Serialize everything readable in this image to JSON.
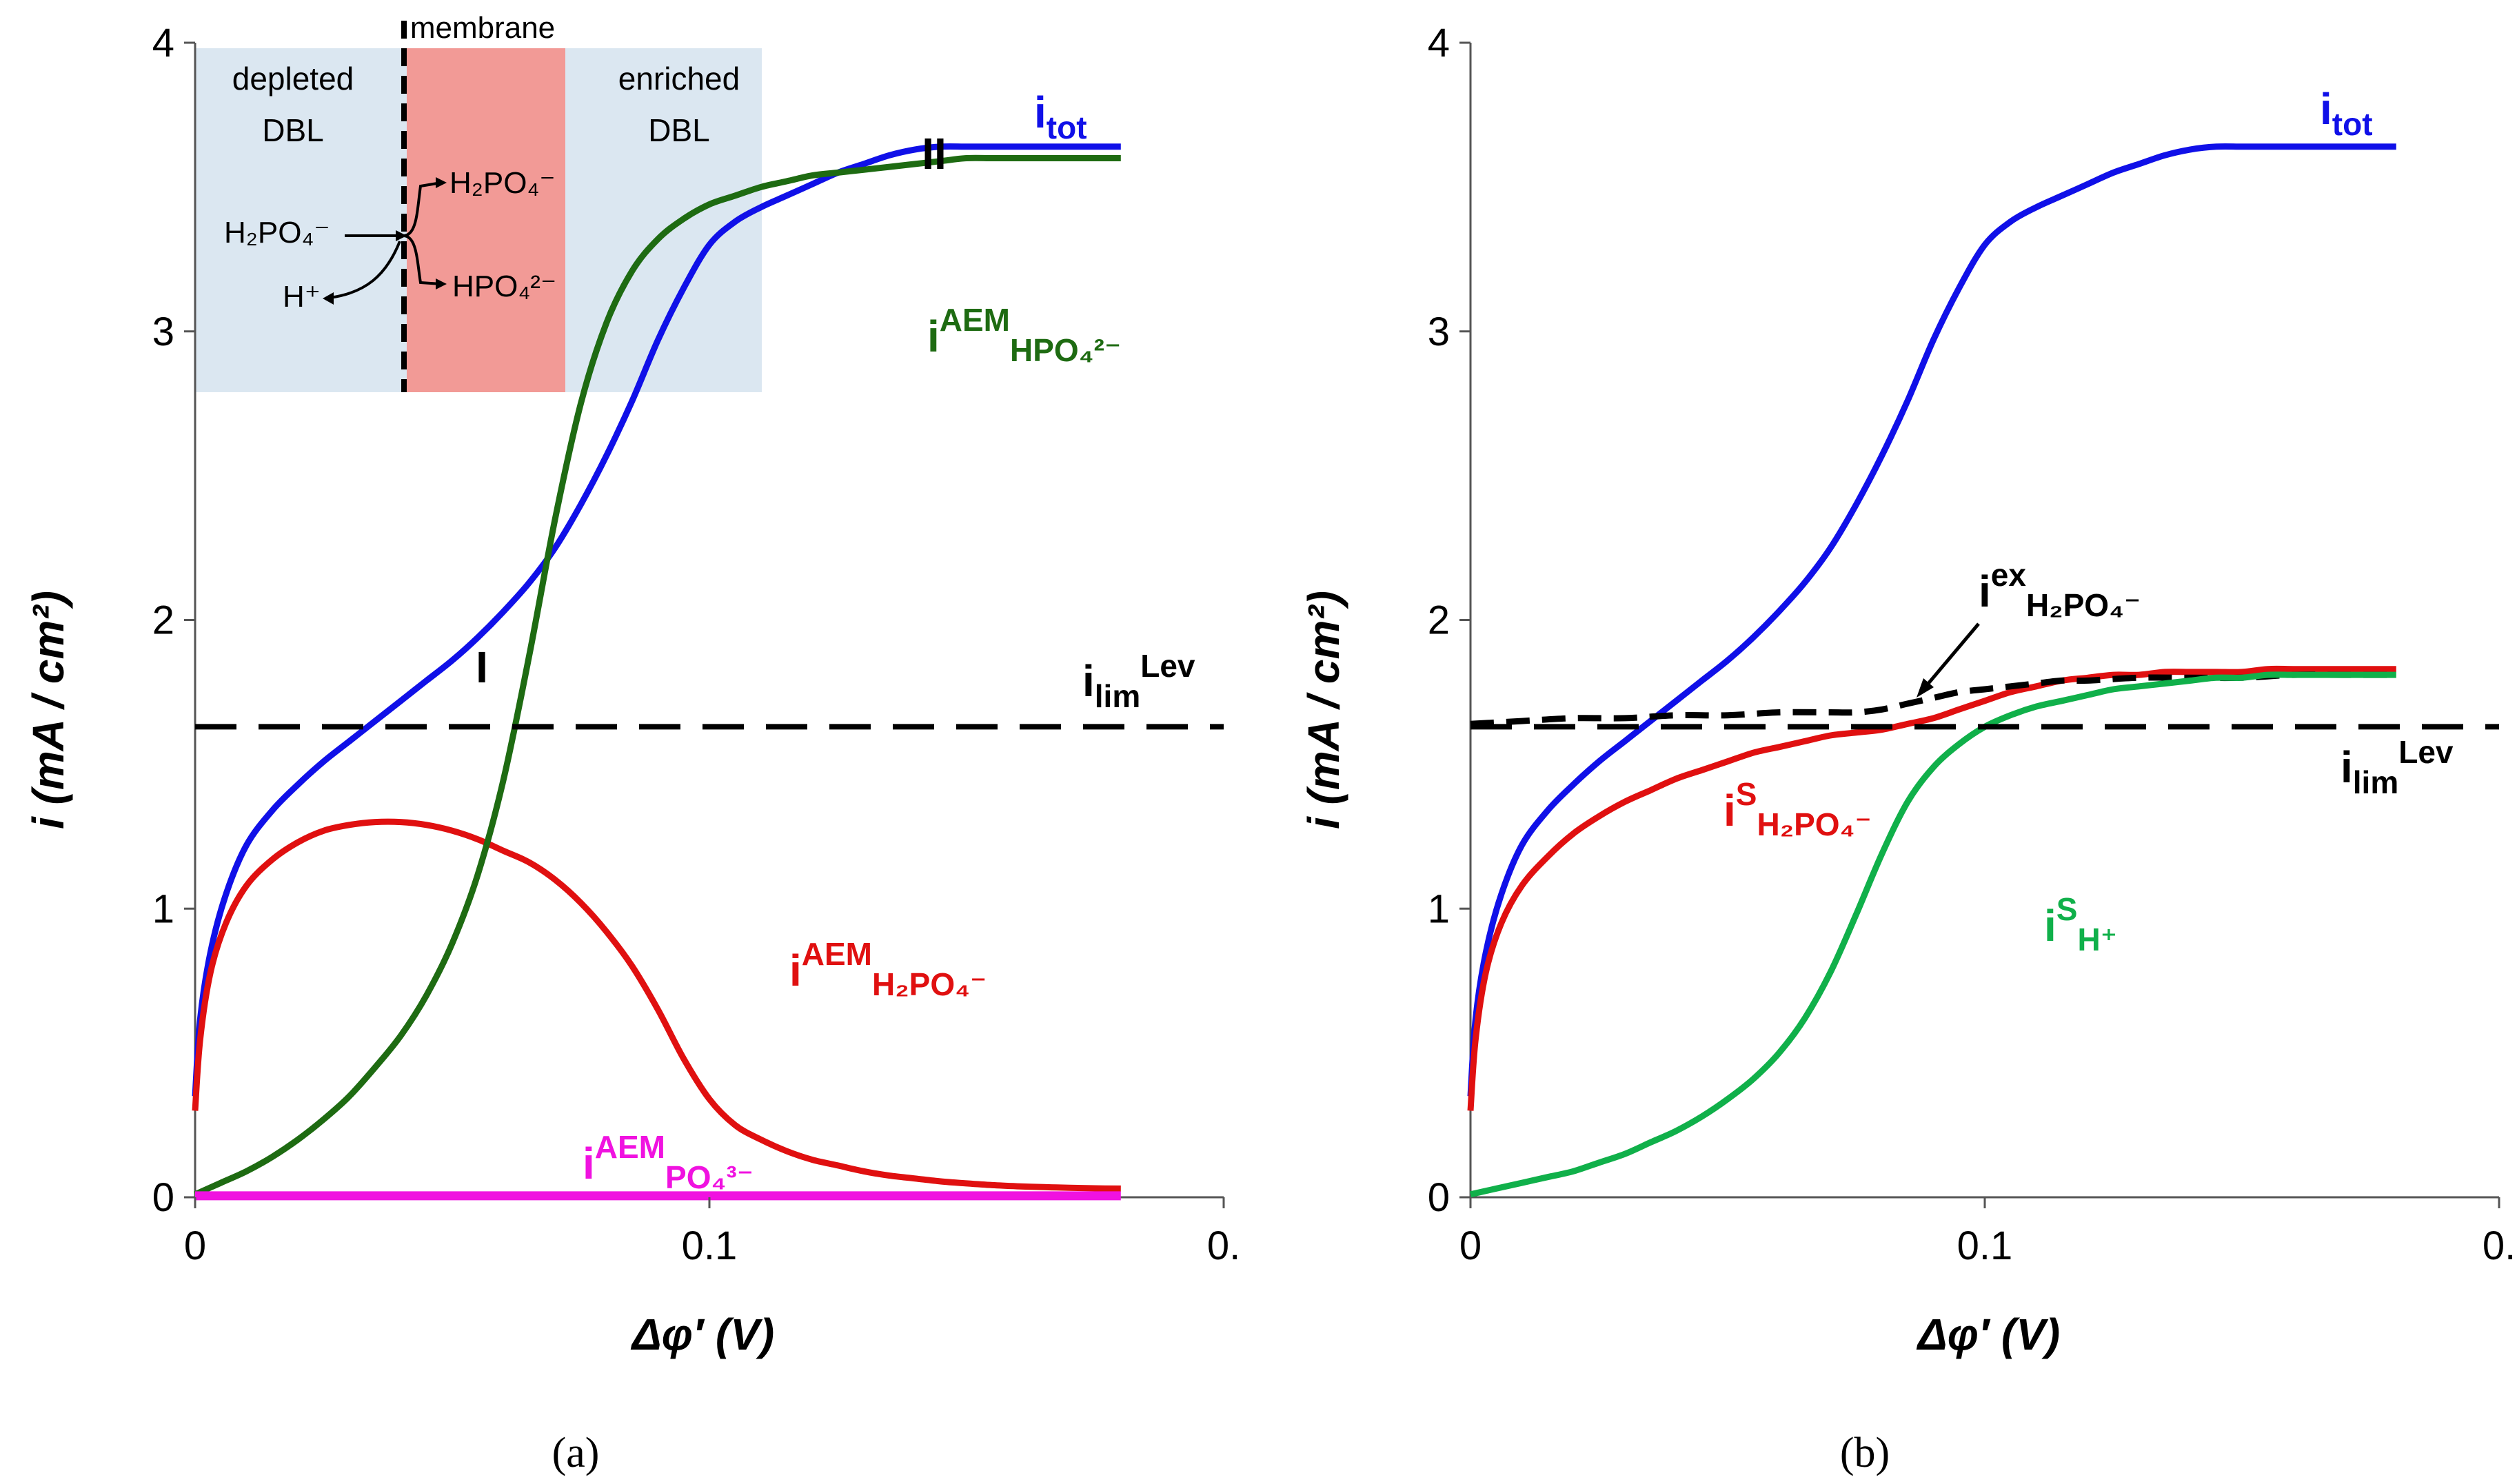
{
  "colors": {
    "blue": "#1010e8",
    "red": "#e01010",
    "darkgreen": "#1e6b12",
    "green": "#10b04a",
    "magenta": "#f012e0",
    "black": "#000000",
    "dbl": "#dbe7f1",
    "membrane": "#f29a96"
  },
  "chart_data": [
    {
      "type": "line",
      "panel_label": "(a)",
      "xlabel": "Δφ′ (V)",
      "ylabel": "i (mA / cm²)",
      "xlim": [
        0,
        0.2
      ],
      "ylim": [
        0,
        4
      ],
      "x_ticks": [
        "0",
        "0.1",
        "0."
      ],
      "y_ticks": [
        "0",
        "1",
        "2",
        "3",
        "4"
      ],
      "series": [
        {
          "name": "i_tot",
          "label": "i",
          "sub": "tot",
          "sup": "",
          "color": "#1010e8",
          "dash": false,
          "x": [
            0,
            0.001,
            0.003,
            0.006,
            0.01,
            0.015,
            0.02,
            0.025,
            0.03,
            0.035,
            0.04,
            0.045,
            0.05,
            0.055,
            0.06,
            0.065,
            0.07,
            0.075,
            0.08,
            0.085,
            0.09,
            0.095,
            0.1,
            0.105,
            0.11,
            0.115,
            0.12,
            0.125,
            0.13,
            0.135,
            0.14,
            0.145,
            0.15,
            0.155,
            0.16,
            0.165,
            0.17,
            0.175,
            0.18
          ],
          "y": [
            0.35,
            0.62,
            0.85,
            1.05,
            1.22,
            1.34,
            1.43,
            1.51,
            1.58,
            1.65,
            1.72,
            1.79,
            1.86,
            1.94,
            2.03,
            2.13,
            2.25,
            2.4,
            2.57,
            2.76,
            2.97,
            3.15,
            3.3,
            3.38,
            3.43,
            3.47,
            3.51,
            3.55,
            3.58,
            3.61,
            3.63,
            3.64,
            3.64,
            3.64,
            3.64,
            3.64,
            3.64,
            3.64,
            3.64
          ]
        },
        {
          "name": "i_AEM_H2PO4",
          "label": "i",
          "sub": "H₂PO₄⁻",
          "sup": "AEM",
          "color": "#e01010",
          "dash": false,
          "x": [
            0,
            0.001,
            0.003,
            0.006,
            0.01,
            0.015,
            0.02,
            0.025,
            0.03,
            0.035,
            0.04,
            0.045,
            0.05,
            0.055,
            0.06,
            0.065,
            0.07,
            0.075,
            0.08,
            0.085,
            0.09,
            0.095,
            0.1,
            0.105,
            0.11,
            0.115,
            0.12,
            0.125,
            0.13,
            0.135,
            0.14,
            0.145,
            0.15,
            0.155,
            0.16,
            0.165,
            0.17,
            0.175,
            0.18
          ],
          "y": [
            0.3,
            0.55,
            0.78,
            0.95,
            1.08,
            1.17,
            1.23,
            1.27,
            1.29,
            1.3,
            1.3,
            1.29,
            1.27,
            1.24,
            1.2,
            1.16,
            1.1,
            1.02,
            0.92,
            0.8,
            0.65,
            0.48,
            0.34,
            0.25,
            0.2,
            0.16,
            0.13,
            0.11,
            0.09,
            0.075,
            0.065,
            0.055,
            0.048,
            0.042,
            0.038,
            0.035,
            0.033,
            0.031,
            0.03
          ]
        },
        {
          "name": "i_AEM_HPO4",
          "label": "i",
          "sub": "HPO₄²⁻",
          "sup": "AEM",
          "color": "#1e6b12",
          "dash": false,
          "x": [
            0,
            0.005,
            0.01,
            0.015,
            0.02,
            0.025,
            0.03,
            0.035,
            0.04,
            0.045,
            0.05,
            0.055,
            0.06,
            0.065,
            0.07,
            0.075,
            0.08,
            0.085,
            0.09,
            0.095,
            0.1,
            0.105,
            0.11,
            0.115,
            0.12,
            0.125,
            0.13,
            0.135,
            0.14,
            0.145,
            0.15,
            0.155,
            0.16,
            0.165,
            0.17,
            0.175,
            0.18
          ],
          "y": [
            0.01,
            0.05,
            0.09,
            0.14,
            0.2,
            0.27,
            0.35,
            0.45,
            0.56,
            0.7,
            0.88,
            1.12,
            1.45,
            1.88,
            2.35,
            2.75,
            3.03,
            3.21,
            3.32,
            3.39,
            3.44,
            3.47,
            3.5,
            3.52,
            3.54,
            3.55,
            3.56,
            3.57,
            3.58,
            3.59,
            3.6,
            3.6,
            3.6,
            3.6,
            3.6,
            3.6,
            3.6
          ]
        },
        {
          "name": "i_AEM_PO4",
          "label": "i",
          "sub": "PO₄³⁻",
          "sup": "AEM",
          "color": "#f012e0",
          "dash": false,
          "x": [
            0,
            0.18
          ],
          "y": [
            0.005,
            0.005
          ]
        },
        {
          "name": "i_lim_Lev",
          "label": "i",
          "sub": "lim",
          "sup": "Lev",
          "color": "#000000",
          "dash": true,
          "x": [
            0,
            0.2
          ],
          "y": [
            1.63,
            1.63
          ]
        }
      ],
      "annotations": [
        "I",
        "II"
      ],
      "inset": {
        "labels": [
          "membrane",
          "depleted",
          "DBL",
          "enriched",
          "DBL",
          "H₂PO₄⁻",
          "H₂PO₄⁻",
          "HPO₄²⁻",
          "H⁺"
        ]
      }
    },
    {
      "type": "line",
      "panel_label": "(b)",
      "xlabel": "Δφ′ (V)",
      "ylabel": "i (mA / cm²)",
      "xlim": [
        0,
        0.2
      ],
      "ylim": [
        0,
        4
      ],
      "x_ticks": [
        "0",
        "0.1",
        "0."
      ],
      "y_ticks": [
        "0",
        "1",
        "2",
        "3",
        "4"
      ],
      "series": [
        {
          "name": "i_tot",
          "label": "i",
          "sub": "tot",
          "sup": "",
          "color": "#1010e8",
          "dash": false,
          "x": [
            0,
            0.001,
            0.003,
            0.006,
            0.01,
            0.015,
            0.02,
            0.025,
            0.03,
            0.035,
            0.04,
            0.045,
            0.05,
            0.055,
            0.06,
            0.065,
            0.07,
            0.075,
            0.08,
            0.085,
            0.09,
            0.095,
            0.1,
            0.105,
            0.11,
            0.115,
            0.12,
            0.125,
            0.13,
            0.135,
            0.14,
            0.145,
            0.15,
            0.155,
            0.16,
            0.165,
            0.17,
            0.175,
            0.18
          ],
          "y": [
            0.35,
            0.62,
            0.85,
            1.05,
            1.22,
            1.34,
            1.43,
            1.51,
            1.58,
            1.65,
            1.72,
            1.79,
            1.86,
            1.94,
            2.03,
            2.13,
            2.25,
            2.4,
            2.57,
            2.76,
            2.97,
            3.15,
            3.3,
            3.38,
            3.43,
            3.47,
            3.51,
            3.55,
            3.58,
            3.61,
            3.63,
            3.64,
            3.64,
            3.64,
            3.64,
            3.64,
            3.64,
            3.64,
            3.64
          ]
        },
        {
          "name": "i_S_H2PO4",
          "label": "i",
          "sub": "H₂PO₄⁻",
          "sup": "S",
          "color": "#e01010",
          "dash": false,
          "x": [
            0,
            0.001,
            0.003,
            0.006,
            0.01,
            0.015,
            0.02,
            0.025,
            0.03,
            0.035,
            0.04,
            0.045,
            0.05,
            0.055,
            0.06,
            0.065,
            0.07,
            0.075,
            0.08,
            0.085,
            0.09,
            0.095,
            0.1,
            0.105,
            0.11,
            0.115,
            0.12,
            0.125,
            0.13,
            0.135,
            0.14,
            0.145,
            0.15,
            0.155,
            0.16,
            0.165,
            0.17,
            0.175,
            0.18
          ],
          "y": [
            0.3,
            0.55,
            0.78,
            0.95,
            1.08,
            1.18,
            1.26,
            1.32,
            1.37,
            1.41,
            1.45,
            1.48,
            1.51,
            1.54,
            1.56,
            1.58,
            1.6,
            1.61,
            1.62,
            1.64,
            1.66,
            1.69,
            1.72,
            1.75,
            1.77,
            1.79,
            1.8,
            1.81,
            1.81,
            1.82,
            1.82,
            1.82,
            1.82,
            1.83,
            1.83,
            1.83,
            1.83,
            1.83,
            1.83
          ]
        },
        {
          "name": "i_ex_H2PO4",
          "label": "i",
          "sub": "H₂PO₄⁻",
          "sup": "ex",
          "color": "#000000",
          "dash": true,
          "x": [
            0,
            0.01,
            0.02,
            0.03,
            0.04,
            0.05,
            0.06,
            0.07,
            0.075,
            0.08,
            0.085,
            0.09,
            0.095,
            0.1,
            0.105,
            0.11,
            0.115,
            0.12,
            0.13,
            0.14,
            0.15,
            0.16,
            0.17,
            0.18
          ],
          "y": [
            1.64,
            1.65,
            1.66,
            1.66,
            1.67,
            1.67,
            1.68,
            1.68,
            1.68,
            1.69,
            1.71,
            1.73,
            1.75,
            1.76,
            1.77,
            1.78,
            1.79,
            1.79,
            1.8,
            1.8,
            1.8,
            1.81,
            1.81,
            1.81
          ]
        },
        {
          "name": "i_S_H",
          "label": "i",
          "sub": "H⁺",
          "sup": "S",
          "color": "#10b04a",
          "dash": false,
          "x": [
            0,
            0.005,
            0.01,
            0.015,
            0.02,
            0.025,
            0.03,
            0.035,
            0.04,
            0.045,
            0.05,
            0.055,
            0.06,
            0.065,
            0.07,
            0.075,
            0.08,
            0.085,
            0.09,
            0.095,
            0.1,
            0.105,
            0.11,
            0.115,
            0.12,
            0.125,
            0.13,
            0.135,
            0.14,
            0.145,
            0.15,
            0.155,
            0.16,
            0.165,
            0.17,
            0.175,
            0.18
          ],
          "y": [
            0.01,
            0.03,
            0.05,
            0.07,
            0.09,
            0.12,
            0.15,
            0.19,
            0.23,
            0.28,
            0.34,
            0.41,
            0.5,
            0.62,
            0.78,
            0.98,
            1.19,
            1.37,
            1.49,
            1.57,
            1.63,
            1.67,
            1.7,
            1.72,
            1.74,
            1.76,
            1.77,
            1.78,
            1.79,
            1.8,
            1.8,
            1.81,
            1.81,
            1.81,
            1.81,
            1.81,
            1.81
          ]
        },
        {
          "name": "i_lim_Lev",
          "label": "i",
          "sub": "lim",
          "sup": "Lev",
          "color": "#000000",
          "dash": true,
          "x": [
            0,
            0.2
          ],
          "y": [
            1.63,
            1.63
          ]
        }
      ]
    }
  ]
}
